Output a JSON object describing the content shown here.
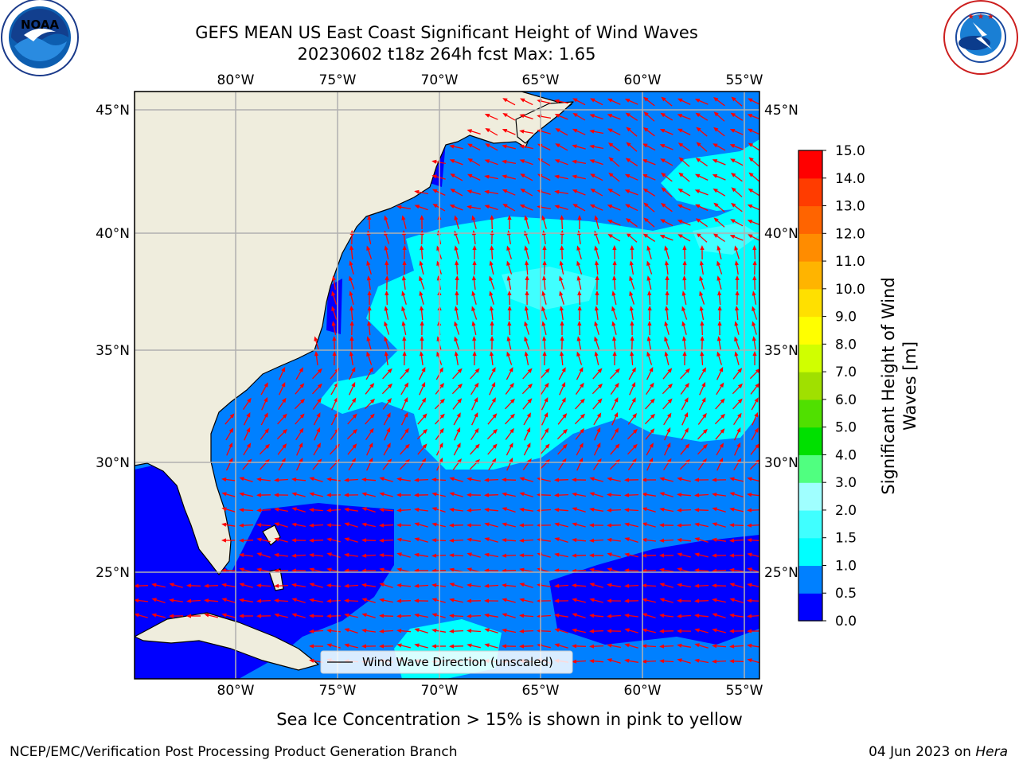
{
  "title": {
    "line1": "GEFS MEAN US East Coast Significant Height of Wind Waves",
    "line2": "20230602 t18z 264h fcst   Max: 1.65"
  },
  "logos": {
    "left": {
      "text": "NOAA",
      "ring_text": "NATIONAL OCEANIC AND ATMOSPHERIC ADMINISTRATION · U.S. DEPARTMENT OF COMMERCE"
    },
    "right": {
      "ring_text": "NATIONAL WEATHER SERVICE"
    }
  },
  "map": {
    "lon_labels": [
      "80°W",
      "75°W",
      "70°W",
      "65°W",
      "60°W",
      "55°W"
    ],
    "lat_labels": [
      "45°N",
      "40°N",
      "35°N",
      "30°N",
      "25°N"
    ],
    "legend_label": "Wind Wave Direction (unscaled)",
    "colors": {
      "land": "#efeddd",
      "coast": "#000000",
      "grid": "#b0b0b0",
      "arrow": "#ff0000"
    }
  },
  "colorbar": {
    "label_line1": "Significant Height of Wind",
    "label_line2": "Waves [m]",
    "ticks": [
      "0.0",
      "0.5",
      "1.0",
      "1.5",
      "2.0",
      "3.0",
      "4.0",
      "5.0",
      "6.0",
      "7.0",
      "8.0",
      "9.0",
      "10.0",
      "11.0",
      "12.0",
      "13.0",
      "14.0",
      "15.0"
    ],
    "colors": [
      "#0000ff",
      "#0080ff",
      "#00ffff",
      "#40ffff",
      "#a0ffff",
      "#50ff80",
      "#00e000",
      "#50e000",
      "#a0e000",
      "#d0ff00",
      "#ffff00",
      "#ffe000",
      "#ffb400",
      "#ff8c00",
      "#ff6400",
      "#ff3c00",
      "#ff0000"
    ]
  },
  "footer": {
    "note": "Sea Ice Concentration > 15% is shown in pink to yellow",
    "credit": "NCEP/EMC/Verification Post Processing Product Generation Branch",
    "date": "04 Jun 2023 on ",
    "machine": "Hera"
  }
}
